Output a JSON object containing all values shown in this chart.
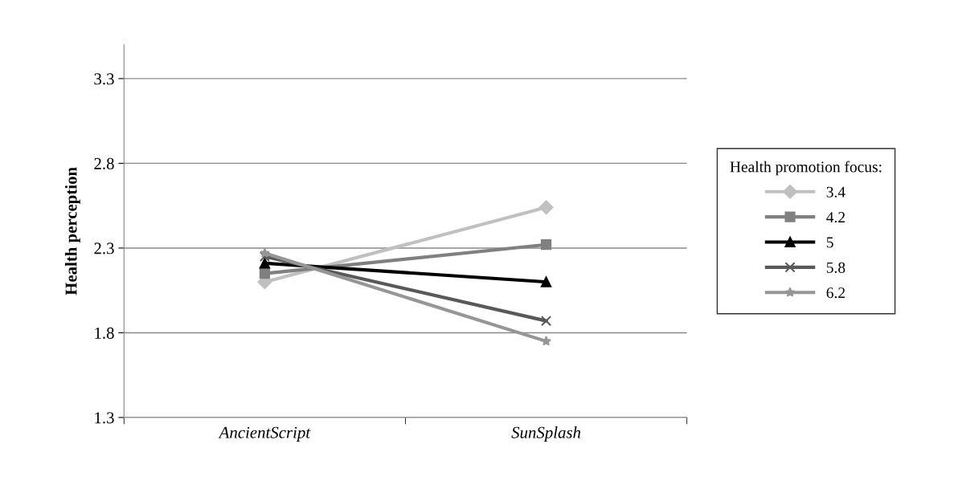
{
  "chart_data": {
    "type": "line",
    "ylabel": "Health perception",
    "legend_title": "Health promotion focus:",
    "categories": [
      "AncientScript",
      "SunSplash"
    ],
    "series": [
      {
        "name": "3.4",
        "color": "#c0c0c0",
        "marker": "diamond",
        "values": [
          2.1,
          2.54
        ]
      },
      {
        "name": "4.2",
        "color": "#808080",
        "marker": "square",
        "values": [
          2.15,
          2.32
        ]
      },
      {
        "name": "5",
        "color": "#000000",
        "marker": "triangle",
        "values": [
          2.21,
          2.1
        ]
      },
      {
        "name": "5.8",
        "color": "#595959",
        "marker": "cross",
        "values": [
          2.25,
          1.87
        ]
      },
      {
        "name": "6.2",
        "color": "#969696",
        "marker": "star",
        "values": [
          2.27,
          1.75
        ]
      }
    ],
    "ylim": [
      1.3,
      3.5
    ],
    "yticks": [
      1.3,
      1.8,
      2.3,
      2.8,
      3.3
    ],
    "grid": "y",
    "legend": "right",
    "line_style": "solid"
  }
}
